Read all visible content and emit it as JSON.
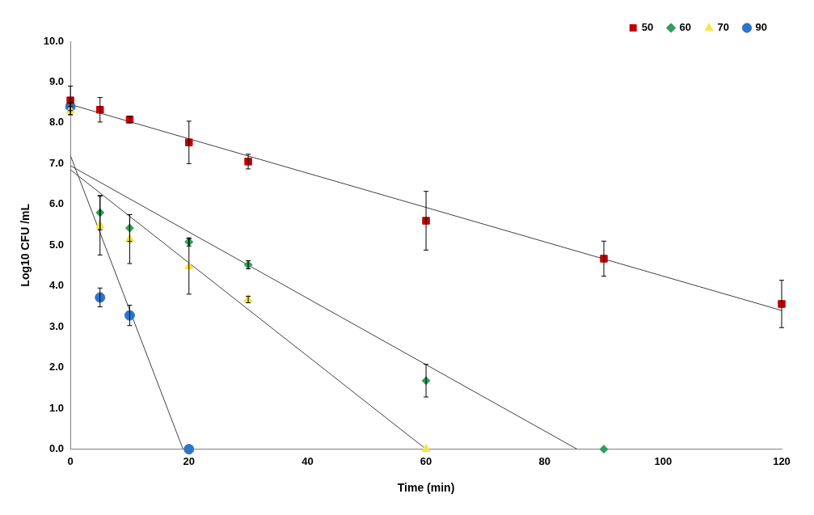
{
  "chart_data": {
    "type": "scatter",
    "x_label": "Time (min)",
    "y_label": "Log10 CFU /mL",
    "xlim": [
      0,
      120
    ],
    "xticks": [
      0,
      20,
      40,
      60,
      80,
      100,
      120
    ],
    "ylim": [
      0,
      10
    ],
    "yticks": [
      {
        "value": 0,
        "label": "0.0"
      },
      {
        "value": 1,
        "label": "1.0"
      },
      {
        "value": 2,
        "label": "2.0"
      },
      {
        "value": 3,
        "label": "3.0"
      },
      {
        "value": 4,
        "label": "4.0"
      },
      {
        "value": 5,
        "label": "5.0"
      },
      {
        "value": 6,
        "label": "6.0"
      },
      {
        "value": 7,
        "label": "7.0"
      },
      {
        "value": 8,
        "label": "8.0"
      },
      {
        "value": 9,
        "label": "9.0"
      },
      {
        "value": 10,
        "label": "10.0"
      }
    ],
    "grid": false,
    "legend": "top-right",
    "series": [
      {
        "name": "50",
        "color": "#C00000",
        "marker": "square",
        "x": [
          0,
          5,
          10,
          20,
          30,
          60,
          90,
          120
        ],
        "values": [
          8.55,
          8.32,
          8.08,
          7.52,
          7.05,
          5.6,
          4.67,
          3.56
        ],
        "errors": [
          0.35,
          0.3,
          0.08,
          0.52,
          0.18,
          0.72,
          0.43,
          0.58
        ],
        "fit_line": {
          "x": [
            0,
            120
          ],
          "values": [
            8.45,
            3.4
          ]
        }
      },
      {
        "name": "60",
        "color": "#2EA05A",
        "marker": "diamond",
        "x": [
          5,
          10,
          20,
          30,
          60,
          90
        ],
        "values": [
          5.8,
          5.42,
          5.08,
          4.52,
          1.68,
          0
        ],
        "errors": [
          0.42,
          0.33,
          0.1,
          0.1,
          0.4,
          null
        ],
        "fit_line": {
          "x": [
            0,
            85.5
          ],
          "values": [
            6.95,
            0
          ]
        }
      },
      {
        "name": "70",
        "color": "#F5E642",
        "marker": "triangle",
        "x": [
          0,
          5,
          10,
          20,
          30,
          60
        ],
        "values": [
          8.3,
          5.48,
          5.15,
          4.48,
          3.67,
          0
        ],
        "errors": [
          0.1,
          0.72,
          0.6,
          0.68,
          0.08,
          null
        ],
        "fit_line": {
          "x": [
            0,
            60
          ],
          "values": [
            6.85,
            0
          ]
        }
      },
      {
        "name": "90",
        "color": "#2E75C8",
        "marker": "circle",
        "x": [
          0,
          5,
          10,
          20
        ],
        "values": [
          8.4,
          3.72,
          3.28,
          0
        ],
        "errors": [
          0.1,
          0.23,
          0.25,
          null
        ],
        "fit_line": {
          "x": [
            0,
            19
          ],
          "values": [
            7.2,
            0
          ]
        }
      }
    ]
  }
}
